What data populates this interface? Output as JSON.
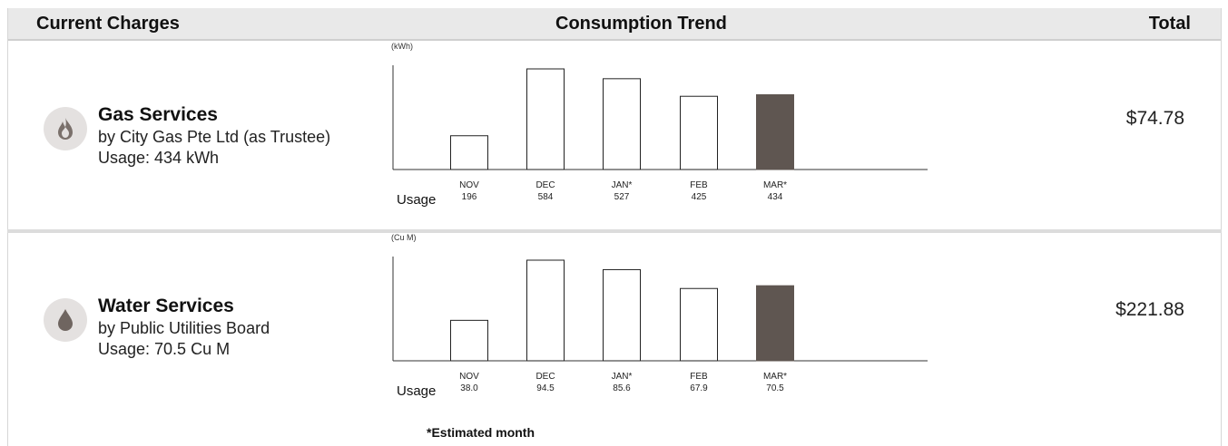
{
  "header": {
    "current_charges": "Current Charges",
    "consumption_trend": "Consumption Trend",
    "total": "Total"
  },
  "services": [
    {
      "icon": "flame-icon",
      "title": "Gas Services",
      "provider": "by City Gas Pte Ltd (as Trustee)",
      "usage": "Usage: 434 kWh",
      "total": "$74.78",
      "chart_data": {
        "type": "bar",
        "unit_label": "(kWh)",
        "row_label": "Usage",
        "categories": [
          "NOV",
          "DEC",
          "JAN*",
          "FEB",
          "MAR*"
        ],
        "value_labels": [
          "196",
          "584",
          "527",
          "425",
          "434"
        ],
        "values": [
          196,
          584,
          527,
          425,
          434
        ],
        "highlight_index": 4,
        "colors": {
          "bar_fill": "#ffffff",
          "bar_stroke": "#222222",
          "highlight": "#5f5651"
        }
      }
    },
    {
      "icon": "water-drop-icon",
      "title": "Water Services",
      "provider": "by Public Utilities Board",
      "usage": "Usage: 70.5 Cu M",
      "total": "$221.88",
      "chart_data": {
        "type": "bar",
        "unit_label": "(Cu M)",
        "row_label": "Usage",
        "categories": [
          "NOV",
          "DEC",
          "JAN*",
          "FEB",
          "MAR*"
        ],
        "value_labels": [
          "38.0",
          "94.5",
          "85.6",
          "67.9",
          "70.5"
        ],
        "values": [
          38.0,
          94.5,
          85.6,
          67.9,
          70.5
        ],
        "highlight_index": 4,
        "colors": {
          "bar_fill": "#ffffff",
          "bar_stroke": "#222222",
          "highlight": "#5f5651"
        }
      }
    }
  ],
  "footnote": "*Estimated month"
}
